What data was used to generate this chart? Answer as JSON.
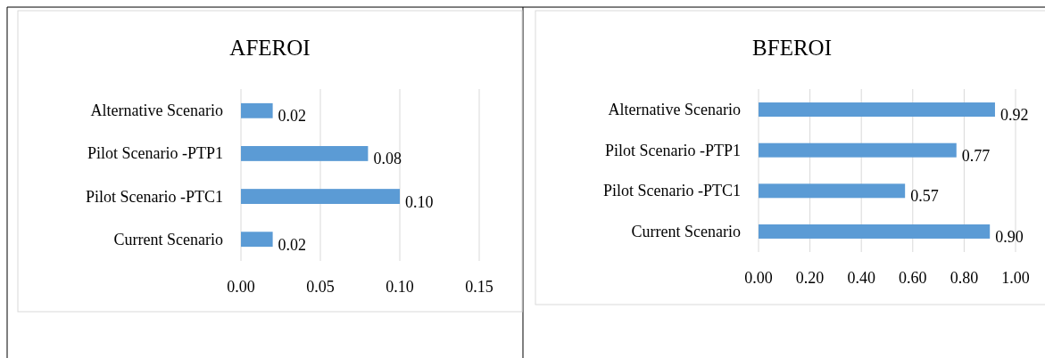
{
  "chart_data": [
    {
      "type": "bar",
      "orientation": "horizontal",
      "title": "AFEROI",
      "categories": [
        "Alternative Scenario",
        "Pilot  Scenario -PTP1",
        "Pilot Scenario -PTC1",
        "Current Scenario"
      ],
      "values": [
        0.02,
        0.08,
        0.1,
        0.02
      ],
      "value_labels": [
        "0.02",
        "0.08",
        "0.10",
        "0.02"
      ],
      "color": "#5b9bd5",
      "xlim": [
        0,
        0.15
      ],
      "xticks": [
        {
          "value": 0,
          "label": "0.00"
        },
        {
          "value": 0.05,
          "label": "0.05"
        },
        {
          "value": 0.1,
          "label": "0.10"
        },
        {
          "value": 0.15,
          "label": "0.15"
        }
      ],
      "grid": "x"
    },
    {
      "type": "bar",
      "orientation": "horizontal",
      "title": "BFEROI",
      "categories": [
        "Alternative Scenario",
        "Pilot  Scenario -PTP1",
        "Pilot Scenario -PTC1",
        "Current Scenario"
      ],
      "values": [
        0.92,
        0.77,
        0.57,
        0.9
      ],
      "value_labels": [
        "0.92",
        "0.77",
        "0.57",
        "0.90"
      ],
      "color": "#5b9bd5",
      "xlim": [
        0,
        1
      ],
      "xticks": [
        {
          "value": 0,
          "label": "0.00"
        },
        {
          "value": 0.2,
          "label": "0.20"
        },
        {
          "value": 0.4,
          "label": "0.40"
        },
        {
          "value": 0.6,
          "label": "0.60"
        },
        {
          "value": 0.8,
          "label": "0.80"
        },
        {
          "value": 1,
          "label": "1.00"
        }
      ],
      "grid": "x"
    }
  ]
}
